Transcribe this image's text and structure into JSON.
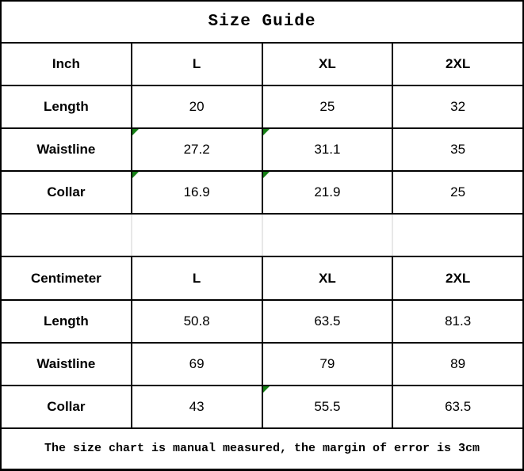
{
  "page": {
    "title": "Size Guide",
    "footer_note": "The size chart is manual measured, the margin of error is 3cm"
  },
  "inch_table": {
    "unit_header": "Inch",
    "size_headers": [
      "L",
      "XL",
      "2XL"
    ],
    "rows": [
      {
        "label": "Length",
        "values": [
          "20",
          "25",
          "32"
        ]
      },
      {
        "label": "Waistline",
        "values": [
          "27.2",
          "31.1",
          "35"
        ]
      },
      {
        "label": "Collar",
        "values": [
          "16.9",
          "21.9",
          "25"
        ]
      }
    ]
  },
  "cm_table": {
    "unit_header": "Centimeter",
    "size_headers": [
      "L",
      "XL",
      "2XL"
    ],
    "rows": [
      {
        "label": "Length",
        "values": [
          "50.8",
          "63.5",
          "81.3"
        ]
      },
      {
        "label": "Waistline",
        "values": [
          "69",
          "79",
          "89"
        ]
      },
      {
        "label": "Collar",
        "values": [
          "43",
          "55.5",
          "63.5"
        ]
      }
    ]
  },
  "flagged_cells": [
    "inch.Waistline.L",
    "inch.Waistline.XL",
    "inch.Collar.L",
    "inch.Collar.XL",
    "cm.Collar.XL"
  ],
  "colors": {
    "border": "#000000",
    "background": "#ffffff",
    "text": "#000000",
    "empty_row_divider": "#e8e8e8",
    "flag_triangle": "#158015"
  }
}
